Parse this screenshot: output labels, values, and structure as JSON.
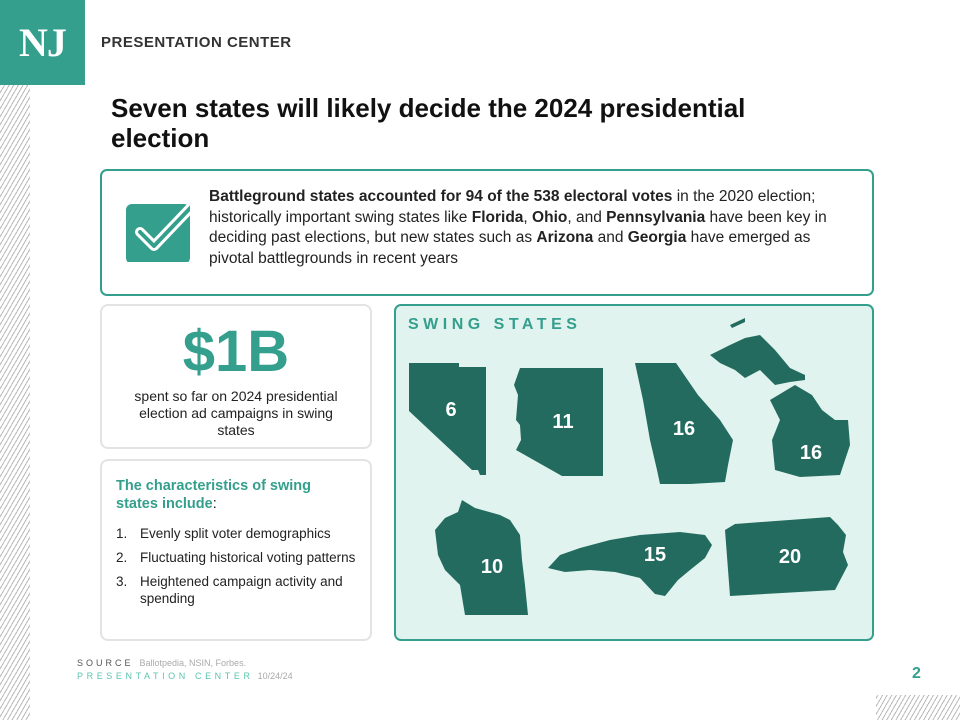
{
  "header": {
    "logo": "NJ",
    "brand": "PRESENTATION CENTER"
  },
  "title": "Seven states will likely decide the 2024 presidential election",
  "summary": {
    "icon": "checkbox-icon",
    "parts": [
      {
        "t": "Battleground states accounted for 94 of the 538 electoral votes",
        "b": true
      },
      {
        "t": " in the 2020 election; historically important swing states like ",
        "b": false
      },
      {
        "t": "Florida",
        "b": true
      },
      {
        "t": ", ",
        "b": false
      },
      {
        "t": "Ohio",
        "b": true
      },
      {
        "t": ", and ",
        "b": false
      },
      {
        "t": "Pennsylvania",
        "b": true
      },
      {
        "t": " have been key in deciding past elections, but new states such as ",
        "b": false
      },
      {
        "t": "Arizona",
        "b": true
      },
      {
        "t": " and ",
        "b": false
      },
      {
        "t": "Georgia",
        "b": true
      },
      {
        "t": " have emerged as pivotal battlegrounds in recent years",
        "b": false
      }
    ]
  },
  "stat": {
    "value": "$1B",
    "desc": "spent so far on 2024 presidential election ad campaigns in swing states"
  },
  "characteristics": {
    "title": "The characteristics of swing states include",
    "colon": ":",
    "items": [
      {
        "n": "1.",
        "t": "Evenly split voter demographics"
      },
      {
        "n": "2.",
        "t": "Fluctuating historical voting patterns"
      },
      {
        "n": "3.",
        "t": "Heightened campaign activity and spending"
      }
    ]
  },
  "map": {
    "title": "SWING STATES",
    "states": [
      {
        "state": "Nevada",
        "votes": "6"
      },
      {
        "state": "Arizona",
        "votes": "11"
      },
      {
        "state": "Georgia",
        "votes": "16"
      },
      {
        "state": "Michigan",
        "votes": "16"
      },
      {
        "state": "Wisconsin",
        "votes": "10"
      },
      {
        "state": "North Carolina",
        "votes": "15"
      },
      {
        "state": "Pennsylvania",
        "votes": "20"
      }
    ]
  },
  "footer": {
    "source_label": "SOURCE",
    "source": "Ballotpedia, NSIN, Forbes.",
    "pc_label": "PRESENTATION CENTER",
    "date": "10/24/24",
    "page": "2"
  },
  "colors": {
    "accent": "#339f8c",
    "map_fill": "#236b5e",
    "map_bg": "#e0f3ef"
  }
}
